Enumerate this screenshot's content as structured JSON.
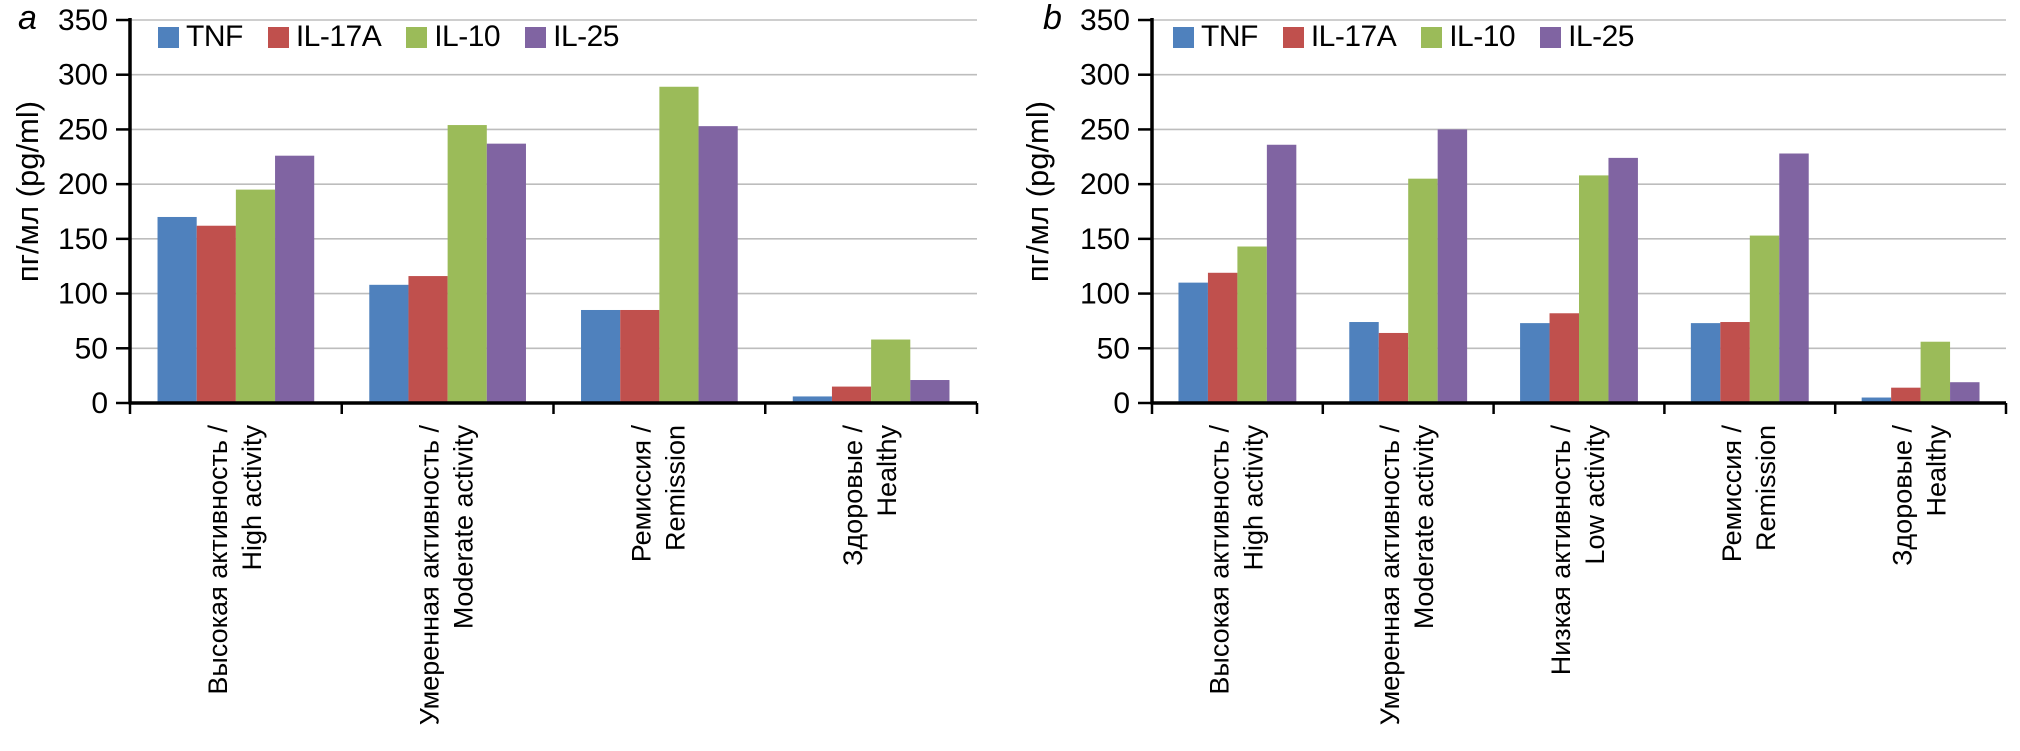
{
  "figure": {
    "background": "#ffffff",
    "panel_labels": [
      "a",
      "b"
    ]
  },
  "chart_data": [
    {
      "id": "a",
      "type": "bar",
      "panel_label": "a",
      "ylabel": "пг/мл (pg/ml)",
      "ylim": [
        0,
        350
      ],
      "yticks": [
        0,
        50,
        100,
        150,
        200,
        250,
        300,
        350
      ],
      "grid": true,
      "grid_color": "#bdbdbd",
      "legend_position": "top",
      "legend": [
        "TNF",
        "IL-17A",
        "IL-10",
        "IL-25"
      ],
      "categories": [
        {
          "ru": "Высокая активность /",
          "en": "High activity"
        },
        {
          "ru": "Умеренная активность /",
          "en": "Moderate activity"
        },
        {
          "ru": "Ремиссия /",
          "en": "Remission"
        },
        {
          "ru": "Здоровые /",
          "en": "Healthy"
        }
      ],
      "series": [
        {
          "name": "TNF",
          "color": "#4f81bd",
          "values": [
            170,
            108,
            85,
            6
          ]
        },
        {
          "name": "IL-17A",
          "color": "#c0504d",
          "values": [
            162,
            116,
            85,
            15
          ]
        },
        {
          "name": "IL-10",
          "color": "#9bbb59",
          "values": [
            195,
            254,
            289,
            58
          ]
        },
        {
          "name": "IL-25",
          "color": "#8064a2",
          "values": [
            226,
            237,
            253,
            21
          ]
        }
      ]
    },
    {
      "id": "b",
      "type": "bar",
      "panel_label": "b",
      "ylabel": "пг/мл (pg/ml)",
      "ylim": [
        0,
        350
      ],
      "yticks": [
        0,
        50,
        100,
        150,
        200,
        250,
        300,
        350
      ],
      "grid": true,
      "grid_color": "#bdbdbd",
      "legend_position": "top",
      "legend": [
        "TNF",
        "IL-17A",
        "IL-10",
        "IL-25"
      ],
      "categories": [
        {
          "ru": "Высокая активность /",
          "en": "High activity"
        },
        {
          "ru": "Умеренная активность /",
          "en": "Moderate activity"
        },
        {
          "ru": "Низкая активность /",
          "en": "Low activity"
        },
        {
          "ru": "Ремиссия /",
          "en": "Remission"
        },
        {
          "ru": "Здоровые /",
          "en": "Healthy"
        }
      ],
      "series": [
        {
          "name": "TNF",
          "color": "#4f81bd",
          "values": [
            110,
            74,
            73,
            73,
            5
          ]
        },
        {
          "name": "IL-17A",
          "color": "#c0504d",
          "values": [
            119,
            64,
            82,
            74,
            14
          ]
        },
        {
          "name": "IL-10",
          "color": "#9bbb59",
          "values": [
            143,
            205,
            208,
            153,
            56
          ]
        },
        {
          "name": "IL-25",
          "color": "#8064a2",
          "values": [
            236,
            250,
            224,
            228,
            19
          ]
        }
      ]
    }
  ]
}
